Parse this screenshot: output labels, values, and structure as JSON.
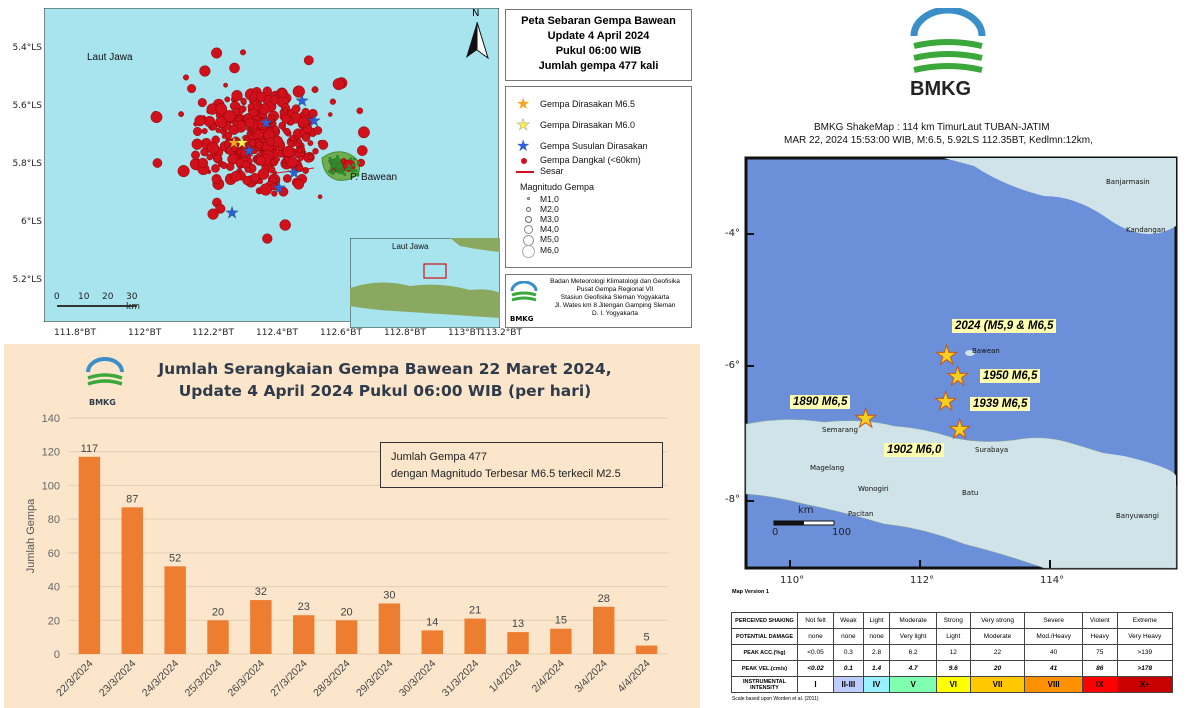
{
  "top_map": {
    "sea_label": "Laut Jawa",
    "island_label": "P. Bawean",
    "north_label": "N",
    "lat_labels": [
      "5.4°LS",
      "5.6°LS",
      "5.8°LS",
      "6°LS",
      "5.2°LS"
    ],
    "lon_labels": [
      "111.8°BT",
      "112°BT",
      "112.2°BT",
      "112.4°BT",
      "112.6°BT",
      "112.8°BT",
      "113°BT",
      "113.2°BT"
    ],
    "scale_labels": [
      "0",
      "10",
      "20",
      "30 km"
    ],
    "title_lines": [
      "Peta Sebaran Gempa Bawean",
      "Update 4 April 2024",
      "Pukul 06:00 WIB",
      "Jumlah gempa 477 kali"
    ],
    "legend": {
      "items": [
        "Gempa Dirasakan M6.5",
        "Gempa Dirasakan M6.0",
        "Gempa Susulan Dirasakan",
        "Gempa Dangkal (<60km)",
        "Sesar"
      ],
      "mag_title": "Magnitudo Gempa",
      "mags": [
        "M1,0",
        "M2,0",
        "M3,0",
        "M4,0",
        "M5,0",
        "M6,0"
      ]
    },
    "inset_label": "Laut Jawa",
    "agency_lines": [
      "Badan Meteorologi Klimatologi dan Geofisika",
      "Pusat Gempa Regional VII",
      "Stasiun Geofisika Sleman Yogyakarta",
      "Jl. Wates km 8 Jitengan Gamping Sleman",
      "D. I. Yogyakarta"
    ],
    "logo_text": "BMKG",
    "colors": {
      "sea": "#a8e4ee",
      "dot": "#d0101a",
      "star_orange": "#f5a623",
      "star_yellow": "#f5f04a",
      "star_blue": "#2d5fd8"
    }
  },
  "bar_chart": {
    "title_line1": "Jumlah Serangkaian Gempa Bawean 22 Maret 2024,",
    "title_line2": "Update 4 April 2024 Pukul 06:00 WIB (per hari)",
    "annotation_line1": "Jumlah Gempa 477",
    "annotation_line2": "dengan Magnitudo Terbesar M6.5 terkecil M2.5",
    "logo_text": "BMKG"
  },
  "chart_data": {
    "type": "bar",
    "categories": [
      "22/3/2024",
      "23/3/2024",
      "24/3/2024",
      "25/3/2024",
      "26/3/2024",
      "27/3/2024",
      "28/3/2024",
      "29/3/2024",
      "30/3/2024",
      "31/3/2024",
      "1/4/2024",
      "2/4/2024",
      "3/4/2024",
      "4/4/2024"
    ],
    "values": [
      117,
      87,
      52,
      20,
      32,
      23,
      20,
      30,
      14,
      21,
      13,
      15,
      28,
      5
    ],
    "ylabel": "Jumlah Gempa",
    "ylim": [
      0,
      140
    ],
    "yticks": [
      "0",
      "20",
      "40",
      "60",
      "80",
      "100",
      "120",
      "140"
    ],
    "bar_color": "#ed7d31",
    "grid": true
  },
  "shakemap": {
    "logo_text": "BMKG",
    "title_line1": "BMKG ShakeMap : 114 km TimurLaut TUBAN-JATIM",
    "title_line2": "MAR 22, 2024 15:53:00 WIB, M:6.5, 5.92LS 112.35BT, Kedlmn:12km,",
    "lat_labels": [
      "-4°",
      "-6°",
      "-8°"
    ],
    "lon_labels": [
      "110°",
      "112°",
      "114°"
    ],
    "city_labels": [
      "Banjarmasin",
      "Kandangan",
      "Bawean",
      "Semarang",
      "Surabaya",
      "Magelang",
      "Wonogiri",
      "Pacitan",
      "Batu",
      "Banyuwangi"
    ],
    "scale_label": "km",
    "scale_values": [
      "0",
      "100"
    ],
    "map_version": "Map Version 1",
    "events": [
      "2024 (M5,9 & M6,5",
      "1950 M6,5",
      "1939 M6,5",
      "1890 M6,5",
      "1902 M6,0"
    ],
    "table": {
      "rows": [
        {
          "head": "PERCEIVED SHAKING",
          "cells": [
            "Not felt",
            "Weak",
            "Light",
            "Moderate",
            "Strong",
            "Very strong",
            "Severe",
            "Violent",
            "Extreme"
          ]
        },
        {
          "head": "POTENTIAL DAMAGE",
          "cells": [
            "none",
            "none",
            "none",
            "Very light",
            "Light",
            "Moderate",
            "Mod./Heavy",
            "Heavy",
            "Very Heavy"
          ]
        },
        {
          "head": "PEAK ACC.(%g)",
          "cells": [
            "<0.05",
            "0.3",
            "2.8",
            "6.2",
            "12",
            "22",
            "40",
            "75",
            ">139"
          ]
        },
        {
          "head": "PEAK VEL.(cm/s)",
          "cells": [
            "<0.02",
            "0.1",
            "1.4",
            "4.7",
            "9.6",
            "20",
            "41",
            "86",
            ">178"
          ]
        },
        {
          "head": "INSTRUMENTAL INTENSITY",
          "cells": [
            "I",
            "II-III",
            "IV",
            "V",
            "VI",
            "VII",
            "VIII",
            "IX",
            "X+"
          ]
        }
      ],
      "intensity_colors": [
        "#ffffff",
        "#bfccff",
        "#99f0ff",
        "#80ffb0",
        "#ffff00",
        "#ffc800",
        "#ff9100",
        "#ff0000",
        "#c80000"
      ],
      "footnote": "Scale based upon Worden et al. (2011)"
    }
  }
}
